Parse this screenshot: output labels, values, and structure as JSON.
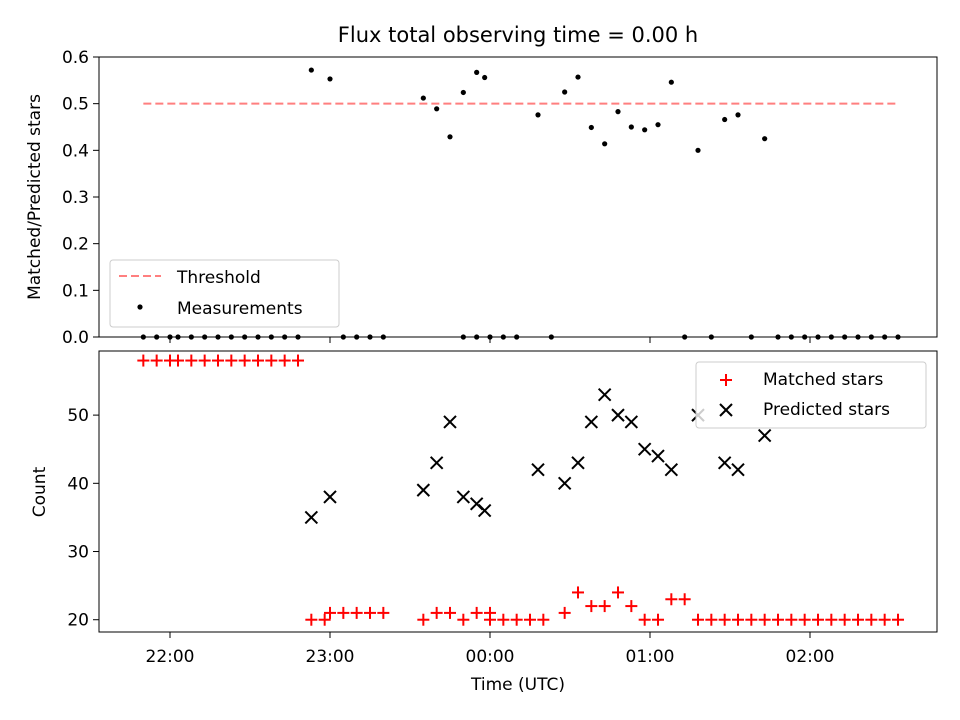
{
  "chart_data": [
    {
      "type": "scatter",
      "title": "Flux total observing time = 0.00 h",
      "xlabel": "",
      "ylabel": "Matched/Predicted stars",
      "ylim": [
        0,
        0.6
      ],
      "yticks": [
        "0.0",
        "0.1",
        "0.2",
        "0.3",
        "0.4",
        "0.5",
        "0.6"
      ],
      "legend_position": "lower-left",
      "threshold": {
        "name": "Threshold",
        "value": 0.5,
        "x_start": "21:50",
        "x_end": "02:33",
        "color": "#ff7f7f",
        "style": "dashed"
      },
      "series": [
        {
          "name": "Measurements",
          "color": "#000000",
          "marker": "dot",
          "points": [
            [
              "21:50",
              0
            ],
            [
              "21:55",
              0
            ],
            [
              "22:00",
              0
            ],
            [
              "22:03",
              0
            ],
            [
              "22:08",
              0
            ],
            [
              "22:13",
              0
            ],
            [
              "22:18",
              0
            ],
            [
              "22:23",
              0
            ],
            [
              "22:28",
              0
            ],
            [
              "22:33",
              0
            ],
            [
              "22:38",
              0
            ],
            [
              "22:43",
              0
            ],
            [
              "22:48",
              0
            ],
            [
              "22:53",
              0.572
            ],
            [
              "23:00",
              0.553
            ],
            [
              "23:05",
              0
            ],
            [
              "23:10",
              0
            ],
            [
              "23:15",
              0
            ],
            [
              "23:20",
              0
            ],
            [
              "23:35",
              0.512
            ],
            [
              "23:40",
              0.489
            ],
            [
              "23:45",
              0.429
            ],
            [
              "23:50",
              0.524
            ],
            [
              "23:55",
              0.567
            ],
            [
              "23:50",
              0
            ],
            [
              "23:55",
              0
            ],
            [
              "23:58",
              0.556
            ],
            [
              "00:00",
              0
            ],
            [
              "00:05",
              0
            ],
            [
              "00:10",
              0
            ],
            [
              "00:18",
              0.476
            ],
            [
              "00:23",
              0
            ],
            [
              "00:28",
              0.525
            ],
            [
              "00:33",
              0.557
            ],
            [
              "00:38",
              0.449
            ],
            [
              "00:43",
              0.414
            ],
            [
              "00:48",
              0.483
            ],
            [
              "00:53",
              0.45
            ],
            [
              "00:58",
              0.444
            ],
            [
              "01:03",
              0.455
            ],
            [
              "01:08",
              0.546
            ],
            [
              "01:13",
              0
            ],
            [
              "01:18",
              0.4
            ],
            [
              "01:23",
              0
            ],
            [
              "01:28",
              0.466
            ],
            [
              "01:33",
              0.476
            ],
            [
              "01:38",
              0
            ],
            [
              "01:43",
              0.425
            ],
            [
              "01:48",
              0
            ],
            [
              "01:53",
              0
            ],
            [
              "01:58",
              0
            ],
            [
              "02:03",
              0
            ],
            [
              "02:08",
              0
            ],
            [
              "02:13",
              0
            ],
            [
              "02:18",
              0
            ],
            [
              "02:23",
              0
            ],
            [
              "02:28",
              0
            ],
            [
              "02:33",
              0
            ]
          ]
        }
      ]
    },
    {
      "type": "scatter",
      "title": "",
      "xlabel": "Time (UTC)",
      "ylabel": "Count",
      "ylim": [
        18.2,
        59.4
      ],
      "yticks": [
        "20",
        "30",
        "40",
        "50"
      ],
      "xticks": [
        "22:00",
        "23:00",
        "00:00",
        "01:00",
        "02:00"
      ],
      "legend_position": "upper-right",
      "series": [
        {
          "name": "Matched stars",
          "color": "#ff0000",
          "marker": "plus",
          "points": [
            [
              "21:50",
              58
            ],
            [
              "21:55",
              58
            ],
            [
              "22:00",
              58
            ],
            [
              "22:03",
              58
            ],
            [
              "22:08",
              58
            ],
            [
              "22:13",
              58
            ],
            [
              "22:18",
              58
            ],
            [
              "22:23",
              58
            ],
            [
              "22:28",
              58
            ],
            [
              "22:33",
              58
            ],
            [
              "22:38",
              58
            ],
            [
              "22:43",
              58
            ],
            [
              "22:48",
              58
            ],
            [
              "22:53",
              20
            ],
            [
              "22:58",
              20
            ],
            [
              "23:00",
              21
            ],
            [
              "23:05",
              21
            ],
            [
              "23:10",
              21
            ],
            [
              "23:15",
              21
            ],
            [
              "23:20",
              21
            ],
            [
              "23:35",
              20
            ],
            [
              "23:40",
              21
            ],
            [
              "23:45",
              21
            ],
            [
              "23:50",
              20
            ],
            [
              "23:55",
              21
            ],
            [
              "24:00",
              21
            ],
            [
              "00:00",
              20
            ],
            [
              "00:05",
              20
            ],
            [
              "00:10",
              20
            ],
            [
              "00:15",
              20
            ],
            [
              "00:20",
              20
            ],
            [
              "00:28",
              21
            ],
            [
              "00:33",
              24
            ],
            [
              "00:38",
              22
            ],
            [
              "00:43",
              22
            ],
            [
              "00:48",
              24
            ],
            [
              "00:53",
              22
            ],
            [
              "00:58",
              20
            ],
            [
              "01:03",
              20
            ],
            [
              "01:08",
              23
            ],
            [
              "01:13",
              23
            ],
            [
              "01:18",
              20
            ],
            [
              "01:23",
              20
            ],
            [
              "01:28",
              20
            ],
            [
              "01:33",
              20
            ],
            [
              "01:38",
              20
            ],
            [
              "01:43",
              20
            ],
            [
              "01:48",
              20
            ],
            [
              "01:53",
              20
            ],
            [
              "01:58",
              20
            ],
            [
              "02:03",
              20
            ],
            [
              "02:08",
              20
            ],
            [
              "02:13",
              20
            ],
            [
              "02:18",
              20
            ],
            [
              "02:23",
              20
            ],
            [
              "02:28",
              20
            ],
            [
              "02:33",
              20
            ]
          ]
        },
        {
          "name": "Predicted stars",
          "color": "#000000",
          "marker": "x",
          "points": [
            [
              "22:53",
              35
            ],
            [
              "23:00",
              38
            ],
            [
              "23:35",
              39
            ],
            [
              "23:40",
              43
            ],
            [
              "23:45",
              49
            ],
            [
              "23:50",
              38
            ],
            [
              "23:55",
              37
            ],
            [
              "23:58",
              36
            ],
            [
              "00:18",
              42
            ],
            [
              "00:28",
              40
            ],
            [
              "00:33",
              43
            ],
            [
              "00:38",
              49
            ],
            [
              "00:43",
              53
            ],
            [
              "00:48",
              50
            ],
            [
              "00:53",
              49
            ],
            [
              "00:58",
              45
            ],
            [
              "01:03",
              44
            ],
            [
              "01:08",
              42
            ],
            [
              "01:18",
              50
            ],
            [
              "01:28",
              43
            ],
            [
              "01:33",
              42
            ],
            [
              "01:43",
              47
            ]
          ]
        }
      ]
    }
  ]
}
